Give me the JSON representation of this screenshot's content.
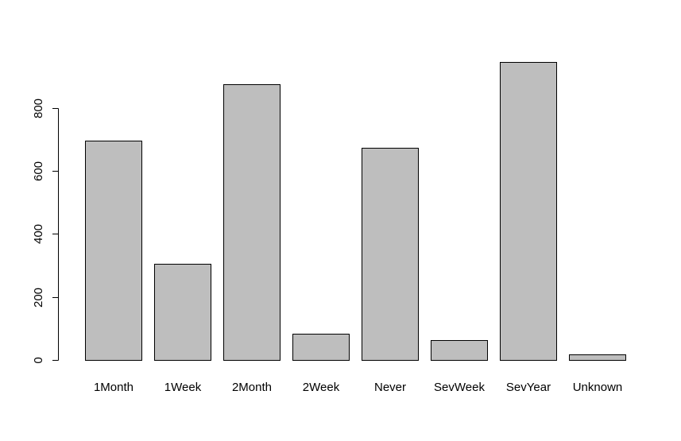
{
  "chart_data": {
    "type": "bar",
    "title": "",
    "xlabel": "",
    "ylabel": "",
    "categories": [
      "1Month",
      "1Week",
      "2Month",
      "2Week",
      "Never",
      "SevWeek",
      "SevYear",
      "Unknown"
    ],
    "values": [
      695,
      306,
      874,
      82,
      674,
      62,
      945,
      17
    ],
    "ylim": [
      0,
      945
    ],
    "yticks": [
      0,
      200,
      400,
      600,
      800
    ],
    "grid": false,
    "bar_color": "#bebebe",
    "border_color": "#000000"
  }
}
